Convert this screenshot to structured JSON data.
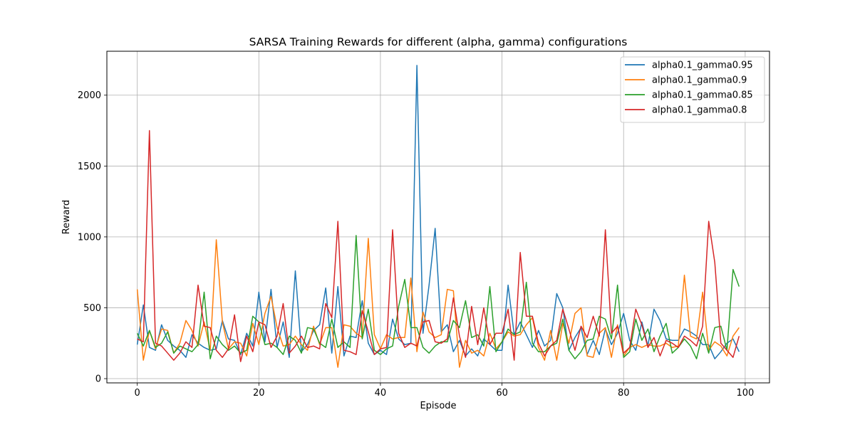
{
  "chart_data": {
    "type": "line",
    "title": "SARSA Training Rewards for different (alpha, gamma) configurations",
    "xlabel": "Episode",
    "ylabel": "Reward",
    "xlim": [
      -5,
      104
    ],
    "ylim": [
      -30,
      2310
    ],
    "xticks": [
      0,
      20,
      40,
      60,
      80,
      100
    ],
    "yticks": [
      0,
      500,
      1000,
      1500,
      2000
    ],
    "grid": true,
    "legend_position": "top-right",
    "series": [
      {
        "name": "alpha0.1_gamma0.95",
        "color": "#1f77b4",
        "values": [
          240,
          520,
          220,
          200,
          380,
          270,
          230,
          200,
          150,
          310,
          250,
          220,
          200,
          210,
          410,
          280,
          270,
          170,
          320,
          230,
          610,
          260,
          630,
          220,
          400,
          150,
          760,
          190,
          240,
          340,
          380,
          640,
          180,
          650,
          160,
          300,
          290,
          550,
          250,
          170,
          200,
          170,
          420,
          280,
          240,
          250,
          2210,
          320,
          660,
          1060,
          330,
          380,
          190,
          270,
          160,
          210,
          160,
          280,
          240,
          200,
          200,
          660,
          310,
          400,
          310,
          220,
          340,
          230,
          270,
          600,
          500,
          200,
          290,
          360,
          170,
          270,
          170,
          350,
          240,
          320,
          460,
          270,
          200,
          400,
          230,
          490,
          410,
          280,
          270,
          270,
          350,
          330,
          300,
          240,
          240,
          140,
          190,
          250,
          280,
          190
        ]
      },
      {
        "name": "alpha0.1_gamma0.9",
        "color": "#ff7f0e",
        "values": [
          630,
          130,
          340,
          210,
          350,
          340,
          180,
          250,
          410,
          340,
          230,
          400,
          200,
          980,
          400,
          210,
          260,
          250,
          160,
          390,
          240,
          460,
          580,
          360,
          230,
          240,
          300,
          240,
          200,
          370,
          240,
          360,
          360,
          80,
          380,
          370,
          320,
          290,
          990,
          310,
          210,
          310,
          280,
          290,
          290,
          710,
          190,
          470,
          330,
          290,
          310,
          630,
          620,
          80,
          270,
          180,
          200,
          160,
          320,
          210,
          260,
          330,
          300,
          310,
          380,
          430,
          220,
          130,
          340,
          130,
          390,
          250,
          460,
          500,
          160,
          150,
          320,
          360,
          150,
          380,
          160,
          220,
          240,
          220,
          240,
          230,
          230,
          250,
          220,
          230,
          730,
          300,
          280,
          610,
          200,
          260,
          230,
          160,
          300,
          360
        ]
      },
      {
        "name": "alpha0.1_gamma0.85",
        "color": "#2ca02c",
        "values": [
          320,
          230,
          340,
          220,
          250,
          330,
          180,
          230,
          210,
          190,
          240,
          610,
          140,
          300,
          240,
          200,
          230,
          180,
          200,
          440,
          400,
          240,
          250,
          220,
          170,
          300,
          270,
          180,
          360,
          350,
          250,
          220,
          420,
          220,
          260,
          220,
          1010,
          280,
          490,
          200,
          170,
          210,
          230,
          510,
          700,
          360,
          360,
          220,
          180,
          230,
          260,
          260,
          410,
          360,
          550,
          290,
          310,
          230,
          650,
          190,
          260,
          350,
          310,
          330,
          680,
          250,
          190,
          190,
          230,
          250,
          420,
          200,
          140,
          190,
          270,
          280,
          440,
          420,
          280,
          660,
          150,
          190,
          420,
          270,
          350,
          190,
          300,
          390,
          180,
          220,
          280,
          230,
          140,
          320,
          180,
          360,
          370,
          200,
          770,
          650
        ]
      },
      {
        "name": "alpha0.1_gamma0.8",
        "color": "#d62728",
        "values": [
          280,
          260,
          1750,
          250,
          230,
          180,
          130,
          180,
          260,
          220,
          660,
          370,
          360,
          200,
          150,
          210,
          450,
          120,
          300,
          190,
          400,
          380,
          220,
          300,
          530,
          180,
          230,
          300,
          220,
          230,
          210,
          530,
          430,
          1110,
          200,
          190,
          170,
          480,
          330,
          170,
          210,
          220,
          1050,
          320,
          220,
          250,
          230,
          400,
          410,
          260,
          250,
          280,
          570,
          300,
          150,
          510,
          240,
          500,
          240,
          320,
          320,
          490,
          130,
          890,
          440,
          440,
          250,
          160,
          230,
          270,
          490,
          350,
          200,
          370,
          290,
          440,
          300,
          1050,
          320,
          370,
          180,
          220,
          490,
          380,
          220,
          290,
          160,
          270,
          250,
          220,
          300,
          270,
          230,
          370,
          1110,
          820,
          250,
          200,
          150,
          300
        ]
      }
    ]
  }
}
